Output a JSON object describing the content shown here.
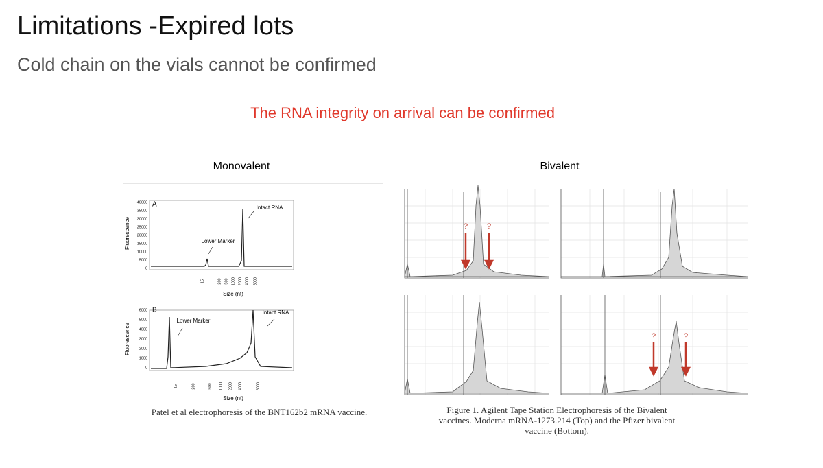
{
  "header": {
    "title": "Limitations -Expired lots",
    "subtitle": "Cold chain on the vials cannot be confirmed"
  },
  "highlight": "The RNA integrity on arrival can be confirmed",
  "monovalent": {
    "heading": "Monovalent",
    "panels": [
      {
        "label": "A",
        "y_axis": "Fluorescence",
        "x_axis": "Size (nt)",
        "yticks": [
          "40000",
          "35000",
          "30000",
          "25000",
          "20000",
          "15000",
          "10000",
          "5000",
          "0"
        ],
        "xticks": [
          "15",
          "200",
          "500",
          "1000",
          "2000",
          "4000",
          "6000"
        ],
        "annotations": [
          "Lower Marker",
          "Intact RNA"
        ]
      },
      {
        "label": "B",
        "y_axis": "Fluorescence",
        "x_axis": "Size (nt)",
        "yticks": [
          "6000",
          "5000",
          "4000",
          "3000",
          "2000",
          "1000",
          "0"
        ],
        "xticks": [
          "15",
          "200",
          "500",
          "1000",
          "2000",
          "4000",
          "6000"
        ],
        "annotations": [
          "Lower Marker",
          "Intact RNA"
        ]
      }
    ],
    "caption": "Patel et al electrophoresis of the BNT162b2 mRNA vaccine."
  },
  "bivalent": {
    "heading": "Bivalent",
    "markers": [
      "?",
      "?",
      "?",
      "?"
    ],
    "caption_lines": [
      "Figure 1. Agilent Tape Station Electrophoresis of the Bivalent",
      "vaccines. Moderna mRNA-1273.214 (Top) and the Pfizer bivalent",
      "vaccine (Bottom)."
    ]
  }
}
